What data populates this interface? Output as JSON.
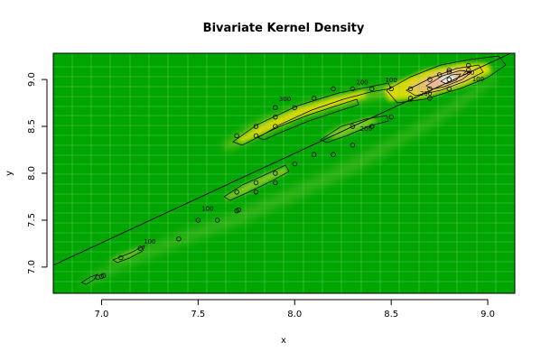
{
  "chart_data": {
    "type": "scatter",
    "title": "Bivariate Kernel Density",
    "xlabel": "x",
    "ylabel": "y",
    "xlim": [
      6.75,
      9.14
    ],
    "ylim": [
      6.72,
      9.28
    ],
    "x_ticks": [
      7.0,
      7.5,
      8.0,
      8.5,
      9.0
    ],
    "x_tick_labels": [
      "7.0",
      "7.5",
      "8.0",
      "8.5",
      "9.0"
    ],
    "y_ticks": [
      7.0,
      7.5,
      8.0,
      8.5,
      9.0
    ],
    "y_tick_labels": [
      "7.0",
      "7.5",
      "8.0",
      "8.5",
      "9.0"
    ],
    "grid": true,
    "background": "density heatmap (green low, yellow/orange/pink high)",
    "colors": {
      "low": "#00a600",
      "mid": "#e6e600",
      "high": "#eeb99f",
      "peak": "#f2f2f2",
      "grid": "#80d080"
    },
    "reference_line": {
      "from": [
        6.75,
        7.02
      ],
      "to": [
        9.14,
        9.3
      ]
    },
    "contour_labels": [
      {
        "text": "100",
        "x": 8.95,
        "y": 8.98
      },
      {
        "text": "200",
        "x": 8.35,
        "y": 8.95
      },
      {
        "text": "300",
        "x": 7.95,
        "y": 8.77
      },
      {
        "text": "100",
        "x": 8.5,
        "y": 8.97
      },
      {
        "text": "200",
        "x": 8.68,
        "y": 8.83
      },
      {
        "text": "200",
        "x": 8.9,
        "y": 9.05
      },
      {
        "text": "100",
        "x": 7.55,
        "y": 7.6
      },
      {
        "text": "100",
        "x": 7.25,
        "y": 7.25
      },
      {
        "text": "200",
        "x": 8.37,
        "y": 8.45
      }
    ],
    "points": [
      [
        6.98,
        6.89
      ],
      [
        7.0,
        6.9
      ],
      [
        7.01,
        6.91
      ],
      [
        7.1,
        7.1
      ],
      [
        7.2,
        7.2
      ],
      [
        7.4,
        7.3
      ],
      [
        7.5,
        7.5
      ],
      [
        7.6,
        7.5
      ],
      [
        7.7,
        7.6
      ],
      [
        7.71,
        7.61
      ],
      [
        7.7,
        7.8
      ],
      [
        7.8,
        7.8
      ],
      [
        7.8,
        7.9
      ],
      [
        7.9,
        7.9
      ],
      [
        7.9,
        8.0
      ],
      [
        8.0,
        8.1
      ],
      [
        8.1,
        8.2
      ],
      [
        8.2,
        8.2
      ],
      [
        8.3,
        8.3
      ],
      [
        7.7,
        8.4
      ],
      [
        7.8,
        8.4
      ],
      [
        7.8,
        8.5
      ],
      [
        7.9,
        8.5
      ],
      [
        7.9,
        8.6
      ],
      [
        7.9,
        8.7
      ],
      [
        8.0,
        8.7
      ],
      [
        8.1,
        8.8
      ],
      [
        8.2,
        8.9
      ],
      [
        8.3,
        8.9
      ],
      [
        8.4,
        8.9
      ],
      [
        8.5,
        8.9
      ],
      [
        8.3,
        8.5
      ],
      [
        8.4,
        8.5
      ],
      [
        8.5,
        8.6
      ],
      [
        8.6,
        8.9
      ],
      [
        8.6,
        8.8
      ],
      [
        8.7,
        8.9
      ],
      [
        8.7,
        9.0
      ],
      [
        8.7,
        8.8
      ],
      [
        8.8,
        9.0
      ],
      [
        8.8,
        9.1
      ],
      [
        8.8,
        8.9
      ],
      [
        8.9,
        9.1
      ],
      [
        8.9,
        9.15
      ],
      [
        8.75,
        9.05
      ],
      [
        8.8,
        9.08
      ]
    ]
  }
}
